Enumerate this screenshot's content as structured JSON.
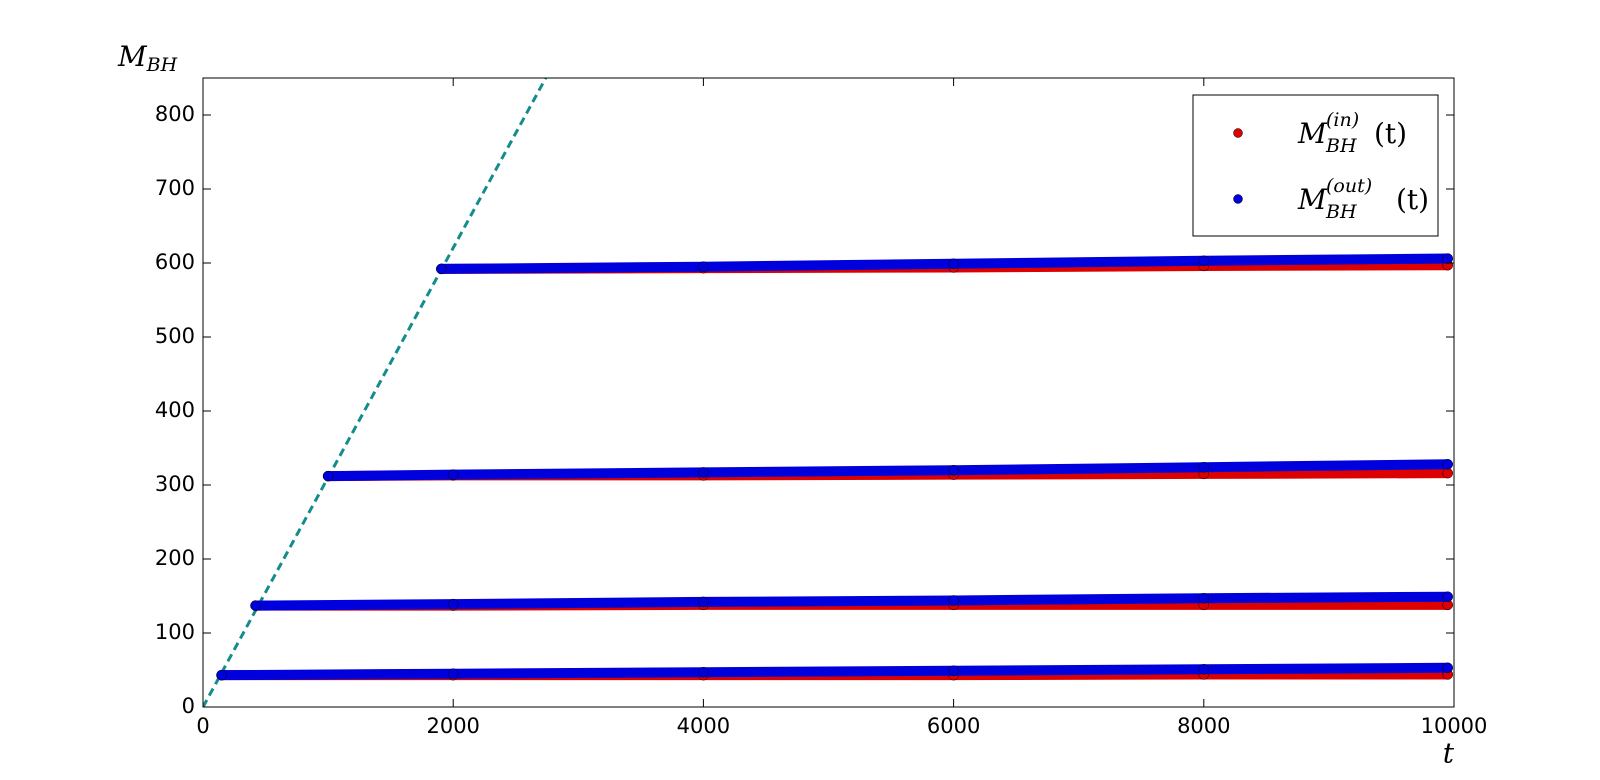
{
  "chart_data": {
    "type": "scatter",
    "xlabel": "t",
    "ylabel": "M",
    "ylabel_sub": "BH",
    "xlim": [
      0,
      10000
    ],
    "xticks": [
      0,
      2000,
      4000,
      6000,
      8000,
      10000
    ],
    "ylim": [
      0,
      850
    ],
    "yticks": [
      0,
      100,
      200,
      300,
      400,
      500,
      600,
      700,
      800
    ],
    "legend": "upper right",
    "series": [
      {
        "name": "M",
        "name_sub": "BH",
        "name_sup": "(in)",
        "name_suffix": "(t)",
        "color": "#dd0000",
        "x": [
          148,
          2000,
          4000,
          6000,
          8000,
          9950,
          null,
          420,
          2000,
          4000,
          6000,
          8000,
          9950,
          null,
          1000,
          2000,
          4000,
          6000,
          8000,
          9950,
          null,
          1905,
          4000,
          6000,
          8000,
          9950
        ],
        "values": [
          43,
          43,
          43,
          43,
          44,
          44,
          null,
          137,
          137,
          138,
          138,
          138,
          138,
          null,
          312,
          313,
          313,
          314,
          315,
          316,
          null,
          592,
          593,
          594,
          596,
          597
        ]
      },
      {
        "name": "M",
        "name_sub": "BH",
        "name_sup": "(out)",
        "name_suffix": "(t)",
        "color": "#0000dd",
        "x": [
          148,
          2000,
          4000,
          6000,
          8000,
          9950,
          null,
          420,
          2000,
          4000,
          6000,
          8000,
          9950,
          null,
          1000,
          2000,
          4000,
          6000,
          8000,
          9950,
          null,
          1905,
          4000,
          6000,
          8000,
          9950
        ],
        "values": [
          43,
          45,
          47,
          49,
          51,
          53,
          null,
          137,
          139,
          142,
          144,
          147,
          149,
          null,
          312,
          314,
          317,
          320,
          324,
          328,
          null,
          592,
          595,
          599,
          603,
          606
        ]
      }
    ],
    "reference_line": {
      "x": [
        0,
        2740
      ],
      "values": [
        0,
        850
      ],
      "color": "#138c8c"
    }
  }
}
